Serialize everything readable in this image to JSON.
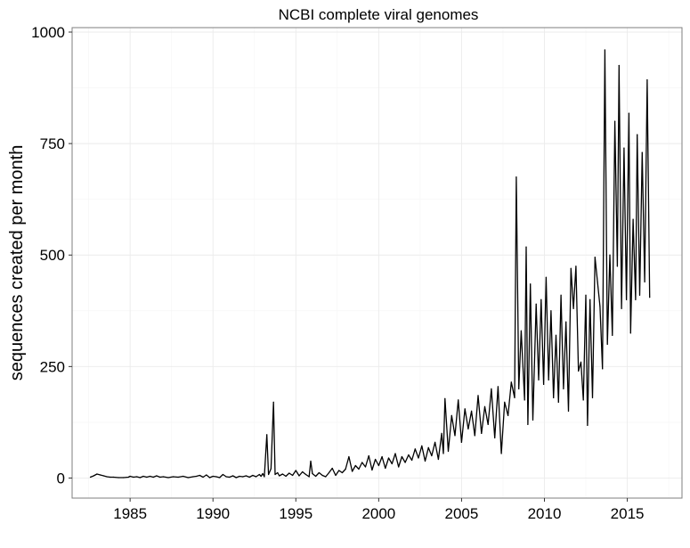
{
  "chart_data": {
    "type": "line",
    "title": "NCBI complete viral genomes",
    "xlabel": "",
    "ylabel": "sequences created per month",
    "xlim": [
      1981.5,
      2018.3
    ],
    "ylim": [
      -45,
      1010
    ],
    "x_ticks": [
      1985,
      1990,
      1995,
      2000,
      2005,
      2010,
      2015
    ],
    "y_ticks": [
      0,
      250,
      500,
      750,
      1000
    ],
    "grid": true,
    "legend": "none",
    "series": [
      {
        "color": "#000000",
        "points": [
          [
            1982.6,
            2
          ],
          [
            1982.8,
            5
          ],
          [
            1983.0,
            9
          ],
          [
            1983.2,
            7
          ],
          [
            1983.4,
            5
          ],
          [
            1983.6,
            3
          ],
          [
            1983.8,
            2
          ],
          [
            1984.0,
            2
          ],
          [
            1984.3,
            1
          ],
          [
            1984.6,
            1
          ],
          [
            1984.9,
            2
          ],
          [
            1985.0,
            4
          ],
          [
            1985.2,
            2
          ],
          [
            1985.4,
            3
          ],
          [
            1985.6,
            1
          ],
          [
            1985.8,
            4
          ],
          [
            1986.0,
            2
          ],
          [
            1986.2,
            4
          ],
          [
            1986.4,
            2
          ],
          [
            1986.6,
            5
          ],
          [
            1986.8,
            2
          ],
          [
            1987.0,
            3
          ],
          [
            1987.3,
            1
          ],
          [
            1987.6,
            3
          ],
          [
            1987.9,
            2
          ],
          [
            1988.2,
            4
          ],
          [
            1988.5,
            1
          ],
          [
            1988.8,
            3
          ],
          [
            1989.0,
            4
          ],
          [
            1989.2,
            6
          ],
          [
            1989.4,
            2
          ],
          [
            1989.6,
            7
          ],
          [
            1989.8,
            1
          ],
          [
            1990.0,
            4
          ],
          [
            1990.2,
            3
          ],
          [
            1990.4,
            1
          ],
          [
            1990.6,
            8
          ],
          [
            1990.8,
            3
          ],
          [
            1991.0,
            2
          ],
          [
            1991.2,
            5
          ],
          [
            1991.4,
            1
          ],
          [
            1991.6,
            4
          ],
          [
            1991.8,
            3
          ],
          [
            1992.0,
            5
          ],
          [
            1992.2,
            2
          ],
          [
            1992.4,
            6
          ],
          [
            1992.6,
            3
          ],
          [
            1992.8,
            8
          ],
          [
            1992.9,
            4
          ],
          [
            1993.0,
            10
          ],
          [
            1993.1,
            3
          ],
          [
            1993.25,
            97
          ],
          [
            1993.35,
            8
          ],
          [
            1993.5,
            21
          ],
          [
            1993.65,
            170
          ],
          [
            1993.75,
            8
          ],
          [
            1993.9,
            12
          ],
          [
            1994.0,
            5
          ],
          [
            1994.2,
            9
          ],
          [
            1994.4,
            4
          ],
          [
            1994.6,
            11
          ],
          [
            1994.8,
            6
          ],
          [
            1995.0,
            17
          ],
          [
            1995.2,
            5
          ],
          [
            1995.4,
            14
          ],
          [
            1995.6,
            8
          ],
          [
            1995.8,
            3
          ],
          [
            1995.9,
            38
          ],
          [
            1996.0,
            10
          ],
          [
            1996.2,
            4
          ],
          [
            1996.4,
            12
          ],
          [
            1996.6,
            6
          ],
          [
            1996.8,
            3
          ],
          [
            1997.0,
            12
          ],
          [
            1997.2,
            22
          ],
          [
            1997.4,
            6
          ],
          [
            1997.6,
            17
          ],
          [
            1997.8,
            12
          ],
          [
            1998.0,
            20
          ],
          [
            1998.2,
            48
          ],
          [
            1998.4,
            15
          ],
          [
            1998.6,
            28
          ],
          [
            1998.8,
            20
          ],
          [
            1999.0,
            35
          ],
          [
            1999.2,
            25
          ],
          [
            1999.4,
            50
          ],
          [
            1999.6,
            18
          ],
          [
            1999.8,
            42
          ],
          [
            2000.0,
            28
          ],
          [
            2000.2,
            48
          ],
          [
            2000.4,
            22
          ],
          [
            2000.6,
            45
          ],
          [
            2000.8,
            32
          ],
          [
            2001.0,
            55
          ],
          [
            2001.2,
            25
          ],
          [
            2001.4,
            48
          ],
          [
            2001.6,
            35
          ],
          [
            2001.8,
            52
          ],
          [
            2002.0,
            40
          ],
          [
            2002.2,
            65
          ],
          [
            2002.4,
            45
          ],
          [
            2002.6,
            72
          ],
          [
            2002.8,
            38
          ],
          [
            2003.0,
            68
          ],
          [
            2003.2,
            50
          ],
          [
            2003.4,
            80
          ],
          [
            2003.6,
            42
          ],
          [
            2003.8,
            100
          ],
          [
            2003.9,
            55
          ],
          [
            2004.0,
            178
          ],
          [
            2004.2,
            60
          ],
          [
            2004.4,
            140
          ],
          [
            2004.6,
            95
          ],
          [
            2004.8,
            175
          ],
          [
            2005.0,
            80
          ],
          [
            2005.2,
            155
          ],
          [
            2005.4,
            110
          ],
          [
            2005.6,
            150
          ],
          [
            2005.8,
            95
          ],
          [
            2006.0,
            185
          ],
          [
            2006.2,
            100
          ],
          [
            2006.4,
            160
          ],
          [
            2006.6,
            120
          ],
          [
            2006.8,
            200
          ],
          [
            2007.0,
            90
          ],
          [
            2007.2,
            205
          ],
          [
            2007.4,
            55
          ],
          [
            2007.6,
            170
          ],
          [
            2007.8,
            140
          ],
          [
            2008.0,
            215
          ],
          [
            2008.2,
            180
          ],
          [
            2008.3,
            675
          ],
          [
            2008.45,
            200
          ],
          [
            2008.6,
            330
          ],
          [
            2008.8,
            175
          ],
          [
            2008.9,
            518
          ],
          [
            2009.0,
            120
          ],
          [
            2009.15,
            435
          ],
          [
            2009.3,
            130
          ],
          [
            2009.5,
            390
          ],
          [
            2009.65,
            220
          ],
          [
            2009.8,
            400
          ],
          [
            2009.95,
            210
          ],
          [
            2010.1,
            450
          ],
          [
            2010.25,
            220
          ],
          [
            2010.4,
            375
          ],
          [
            2010.55,
            180
          ],
          [
            2010.7,
            320
          ],
          [
            2010.85,
            170
          ],
          [
            2011.0,
            410
          ],
          [
            2011.15,
            200
          ],
          [
            2011.3,
            350
          ],
          [
            2011.45,
            150
          ],
          [
            2011.6,
            470
          ],
          [
            2011.75,
            380
          ],
          [
            2011.9,
            475
          ],
          [
            2012.05,
            240
          ],
          [
            2012.2,
            260
          ],
          [
            2012.35,
            175
          ],
          [
            2012.5,
            410
          ],
          [
            2012.6,
            118
          ],
          [
            2012.75,
            400
          ],
          [
            2012.9,
            180
          ],
          [
            2013.05,
            495
          ],
          [
            2013.2,
            440
          ],
          [
            2013.35,
            385
          ],
          [
            2013.5,
            245
          ],
          [
            2013.65,
            960
          ],
          [
            2013.8,
            300
          ],
          [
            2013.95,
            500
          ],
          [
            2014.1,
            320
          ],
          [
            2014.25,
            800
          ],
          [
            2014.4,
            475
          ],
          [
            2014.5,
            925
          ],
          [
            2014.65,
            380
          ],
          [
            2014.8,
            740
          ],
          [
            2014.95,
            400
          ],
          [
            2015.1,
            818
          ],
          [
            2015.2,
            325
          ],
          [
            2015.35,
            580
          ],
          [
            2015.5,
            400
          ],
          [
            2015.6,
            770
          ],
          [
            2015.75,
            410
          ],
          [
            2015.9,
            730
          ],
          [
            2016.05,
            440
          ],
          [
            2016.2,
            893
          ],
          [
            2016.35,
            405
          ]
        ]
      }
    ]
  }
}
